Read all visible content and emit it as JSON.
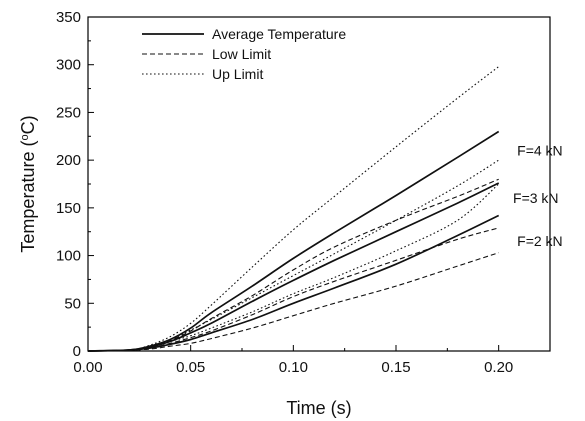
{
  "chart_data": {
    "type": "line",
    "title": "",
    "xlabel": "Time (s)",
    "ylabel_prefix": "Temperature (",
    "ylabel_sup": "o",
    "ylabel_suffix": "C)",
    "xlim": [
      0,
      0.225
    ],
    "ylim": [
      0,
      350
    ],
    "xticks": [
      "0.00",
      "0.05",
      "0.10",
      "0.15",
      "0.20"
    ],
    "yticks": [
      "0",
      "50",
      "100",
      "150",
      "200",
      "250",
      "300",
      "350"
    ],
    "grid": false,
    "legend_position": "top-left",
    "legend": [
      {
        "label": "Average Temperature",
        "style": "solid"
      },
      {
        "label": "Low Limit",
        "style": "dashed"
      },
      {
        "label": "Up Limit",
        "style": "dotted"
      }
    ],
    "annotations": [
      {
        "text": "F=4 kN",
        "x": 0.209,
        "y": 205
      },
      {
        "text": "F=3 kN",
        "x": 0.207,
        "y": 155
      },
      {
        "text": "F=2 kN",
        "x": 0.209,
        "y": 110
      }
    ],
    "x": [
      0,
      0.02,
      0.03,
      0.04,
      0.05,
      0.06,
      0.08,
      0.1,
      0.12,
      0.15,
      0.18,
      0.2
    ],
    "series": [
      {
        "name": "Average Temperature",
        "group": "F=4 kN",
        "style": "solid",
        "values": [
          0,
          1,
          5,
          12,
          24,
          40,
          68,
          97,
          124,
          163,
          203,
          230
        ]
      },
      {
        "name": "Low Limit",
        "group": "F=4 kN",
        "style": "dashed",
        "values": [
          0,
          1,
          4,
          11,
          21,
          34,
          58,
          85,
          109,
          137,
          162,
          180
        ]
      },
      {
        "name": "Up Limit",
        "group": "F=4 kN",
        "style": "dotted",
        "values": [
          0,
          1,
          6,
          15,
          29,
          48,
          88,
          127,
          162,
          214,
          265,
          298
        ]
      },
      {
        "name": "Average Temperature",
        "group": "F=3 kN",
        "style": "solid",
        "values": [
          0,
          1,
          4,
          10,
          19,
          29,
          52,
          74,
          95,
          125,
          155,
          176
        ]
      },
      {
        "name": "Low Limit",
        "group": "F=3 kN",
        "style": "dashed",
        "values": [
          0,
          1,
          3,
          8,
          14,
          21,
          38,
          57,
          73,
          95,
          117,
          129
        ]
      },
      {
        "name": "Up Limit",
        "group": "F=3 kN",
        "style": "dotted",
        "values": [
          0,
          1,
          5,
          12,
          22,
          33,
          56,
          79,
          102,
          137,
          173,
          200
        ]
      },
      {
        "name": "Average Temperature",
        "group": "F=2 kN",
        "style": "solid",
        "values": [
          0,
          1,
          3,
          7,
          12,
          19,
          33,
          50,
          66,
          91,
          121,
          142
        ]
      },
      {
        "name": "Low Limit",
        "group": "F=2 kN",
        "style": "dashed",
        "values": [
          0,
          1,
          2,
          5,
          8,
          13,
          24,
          37,
          50,
          68,
          89,
          103
        ]
      },
      {
        "name": "Up Limit",
        "group": "F=2 kN",
        "style": "dotted",
        "values": [
          0,
          1,
          4,
          10,
          16,
          24,
          41,
          60,
          77,
          105,
          137,
          175
        ]
      }
    ]
  }
}
